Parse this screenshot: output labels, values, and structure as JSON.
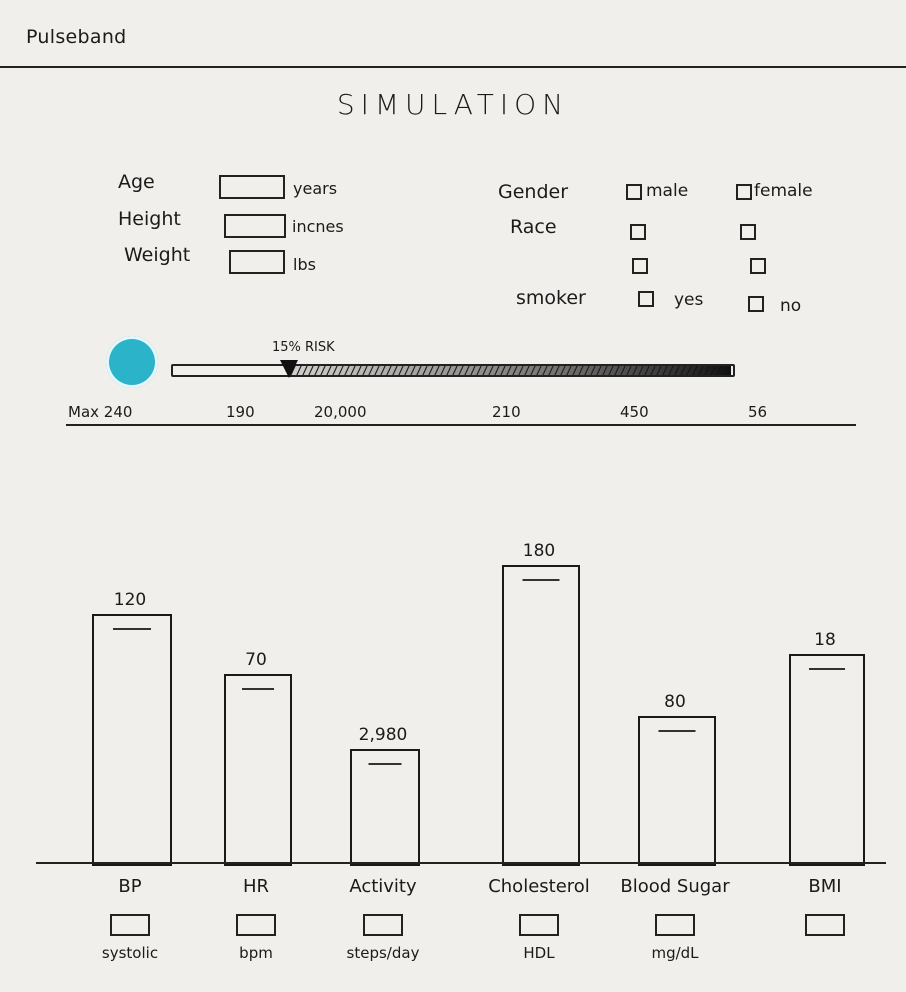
{
  "app": {
    "brand": "Pulseband",
    "title": "SIMULATION"
  },
  "form": {
    "left_fields": [
      {
        "label": "Age",
        "unit": "years"
      },
      {
        "label": "Height",
        "unit": "incnes"
      },
      {
        "label": "Weight",
        "unit": "lbs"
      }
    ],
    "gender": {
      "label": "Gender",
      "options": [
        "male",
        "female"
      ]
    },
    "race": {
      "label": "Race"
    },
    "smoker": {
      "label": "smoker",
      "options": [
        "yes",
        "no"
      ]
    }
  },
  "risk_slider": {
    "risk_label": "15% RISK",
    "risk_fraction": 0.15,
    "scale_labels": [
      "Max 240",
      "190",
      "20,000",
      "210",
      "450",
      "56"
    ],
    "indicator_color": "#2ab3c9"
  },
  "chart_data": {
    "type": "bar",
    "categories": [
      "BP",
      "HR",
      "Activity",
      "Cholesterol",
      "Blood Sugar",
      "BMI"
    ],
    "sublabels": [
      "systolic",
      "bpm",
      "steps/day",
      "HDL",
      "mg/dL",
      ""
    ],
    "value_labels": [
      "120",
      "70",
      "2,980",
      "180",
      "80",
      "18"
    ],
    "values": [
      120,
      70,
      2980,
      180,
      80,
      18
    ]
  }
}
